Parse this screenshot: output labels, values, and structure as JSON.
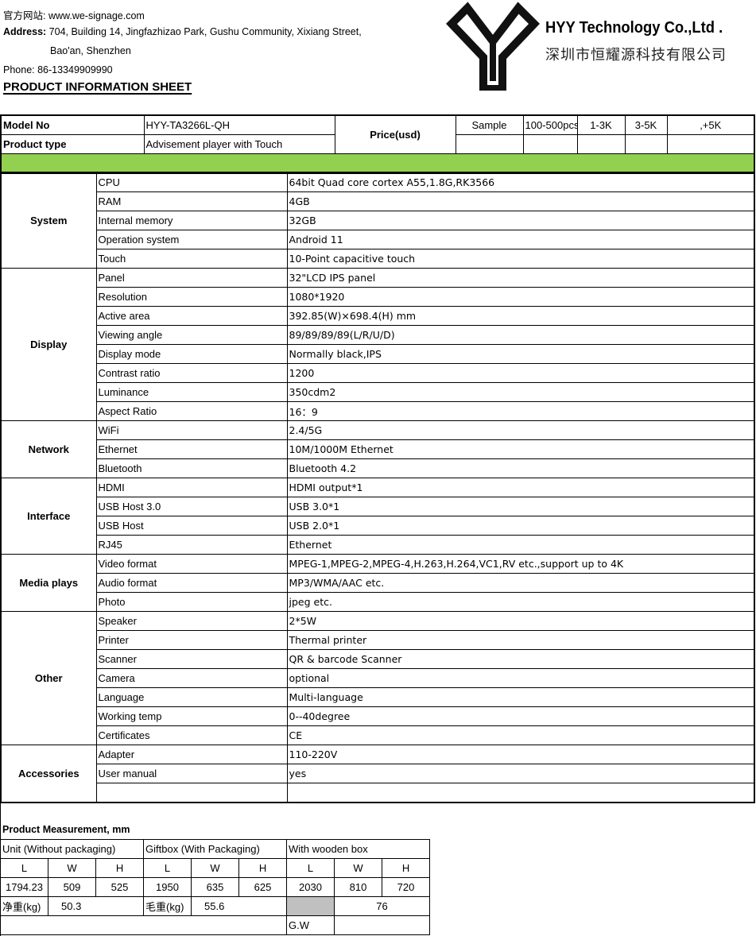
{
  "header": {
    "website_label": "官方网站:",
    "website": "www.we-signage.com",
    "address_label": "Address:",
    "address_line1": "704, Building 14, Jingfazhizao Park, Gushu Community, Xixiang Street,",
    "address_line2": "Bao'an, Shenzhen",
    "phone": "Phone: 86-13349909990",
    "title": "PRODUCT INFORMATION SHEET",
    "company_en": "HYY Technology Co.,Ltd .",
    "company_cn": "深圳市恒耀源科技有限公司"
  },
  "summary": {
    "model_label": "Model No",
    "model": "HYY-TA3266L-QH",
    "type_label": "Product type",
    "type": "Advisement player with Touch",
    "price_label": "Price(usd)",
    "price_tiers": [
      "Sample",
      "100-500pcs",
      "1-3K",
      "3-5K",
      ",+5K"
    ],
    "band_color": "#92d050"
  },
  "specs": [
    {
      "category": "System",
      "rows": [
        [
          "CPU",
          "64bit Quad core cortex A55,1.8G,RK3566"
        ],
        [
          "RAM",
          "4GB"
        ],
        [
          "Internal memory",
          "32GB"
        ],
        [
          "Operation system",
          "Android 11"
        ],
        [
          "Touch",
          "10-Point capacitive touch"
        ]
      ]
    },
    {
      "category": "Display",
      "rows": [
        [
          "Panel",
          "32\"LCD IPS panel"
        ],
        [
          "Resolution",
          "1080*1920"
        ],
        [
          "Active area",
          "392.85(W)×698.4(H) mm"
        ],
        [
          "Viewing angle",
          "89/89/89/89(L/R/U/D)"
        ],
        [
          "Display mode",
          "Normally black,IPS"
        ],
        [
          "Contrast ratio",
          "1200"
        ],
        [
          "Luminance",
          "350cdm2"
        ],
        [
          "Aspect Ratio",
          "16：9"
        ]
      ]
    },
    {
      "category": "Network",
      "rows": [
        [
          "WiFi",
          "2.4/5G"
        ],
        [
          "Ethernet",
          "10M/1000M Ethernet"
        ],
        [
          "Bluetooth",
          "Bluetooth 4.2"
        ]
      ]
    },
    {
      "category": "Interface",
      "rows": [
        [
          "HDMI",
          "HDMI output*1"
        ],
        [
          "USB Host 3.0",
          "USB 3.0*1"
        ],
        [
          "USB Host",
          "USB 2.0*1"
        ],
        [
          "RJ45",
          "Ethernet"
        ]
      ]
    },
    {
      "category": "Media plays",
      "rows": [
        [
          "Video format",
          "MPEG-1,MPEG-2,MPEG-4,H.263,H.264,VC1,RV etc.,support up to 4K"
        ],
        [
          "Audio format",
          "MP3/WMA/AAC etc."
        ],
        [
          "Photo",
          "jpeg etc."
        ]
      ]
    },
    {
      "category": "Other",
      "rows": [
        [
          "Speaker",
          "2*5W"
        ],
        [
          "Printer",
          "Thermal printer"
        ],
        [
          "Scanner",
          "QR & barcode Scanner"
        ],
        [
          "Camera",
          "optional"
        ],
        [
          "Language",
          "Multi-language"
        ],
        [
          "Working temp",
          "0--40degree"
        ],
        [
          "Certificates",
          "CE"
        ]
      ]
    },
    {
      "category": "Accessories",
      "rows": [
        [
          "Adapter",
          "110-220V"
        ],
        [
          "User manual",
          "yes"
        ],
        [
          "",
          ""
        ]
      ]
    }
  ],
  "measurement": {
    "title": "Product Measurement, mm",
    "groups": [
      "Unit (Without packaging)",
      "Giftbox (With Packaging)",
      "With wooden box"
    ],
    "dims": [
      "L",
      "W",
      "H",
      "L",
      "W",
      "H",
      "L",
      "W",
      "H"
    ],
    "values": [
      "1794.23",
      "509",
      "525",
      "1950",
      "635",
      "625",
      "2030",
      "810",
      "720"
    ],
    "net_weight_label": "净重(kg)",
    "net_weight": "50.3",
    "gross_weight_label": "毛重(kg)",
    "gross_weight": "55.6",
    "wooden_weight": "76",
    "gw_label": "G.W"
  }
}
